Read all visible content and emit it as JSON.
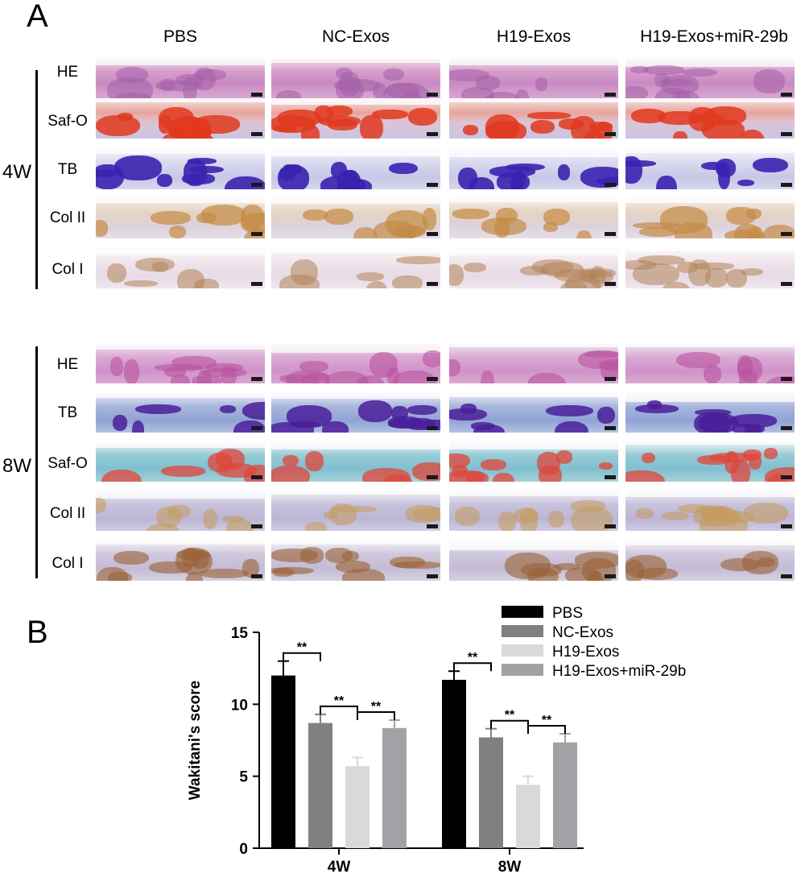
{
  "panelA": {
    "letter": "A",
    "columns": [
      "PBS",
      "NC-Exos",
      "H19-Exos",
      "H19-Exos+miR-29b"
    ],
    "groups": [
      {
        "week": "4W",
        "stains": [
          "HE",
          "Saf-O",
          "TB",
          "Col II",
          "Col I"
        ]
      },
      {
        "week": "8W",
        "stains": [
          "HE",
          "TB",
          "Saf-O",
          "Col II",
          "Col I"
        ]
      }
    ]
  },
  "panelB": {
    "letter": "B"
  },
  "chart_data": {
    "type": "bar",
    "categories": [
      "4W",
      "8W"
    ],
    "series": [
      {
        "name": "PBS",
        "values": [
          12.0,
          11.7
        ],
        "errors": [
          1.0,
          0.6
        ],
        "color": "#000000"
      },
      {
        "name": "NC-Exos",
        "values": [
          8.7,
          7.7
        ],
        "errors": [
          0.6,
          0.6
        ],
        "color": "#808080"
      },
      {
        "name": "H19-Exos",
        "values": [
          5.7,
          4.4
        ],
        "errors": [
          0.6,
          0.6
        ],
        "color": "#d9d9d9"
      },
      {
        "name": "H19-Exos+miR-29b",
        "values": [
          8.35,
          7.35
        ],
        "errors": [
          0.55,
          0.6
        ],
        "color": "#a2a2a6"
      }
    ],
    "ylabel": "Wakitani's score",
    "xlabel": "",
    "ylim": [
      0,
      15
    ],
    "yticks": [
      0,
      5,
      10,
      15
    ],
    "significance": [
      {
        "category": "4W",
        "pair": [
          "PBS",
          "NC-Exos"
        ],
        "label": "**"
      },
      {
        "category": "4W",
        "pair": [
          "NC-Exos",
          "H19-Exos"
        ],
        "label": "**"
      },
      {
        "category": "4W",
        "pair": [
          "H19-Exos",
          "H19-Exos+miR-29b"
        ],
        "label": "**"
      },
      {
        "category": "8W",
        "pair": [
          "PBS",
          "NC-Exos"
        ],
        "label": "**"
      },
      {
        "category": "8W",
        "pair": [
          "NC-Exos",
          "H19-Exos"
        ],
        "label": "**"
      },
      {
        "category": "8W",
        "pair": [
          "H19-Exos",
          "H19-Exos+miR-29b"
        ],
        "label": "**"
      }
    ],
    "legend_position": "top-right",
    "grid": false
  }
}
